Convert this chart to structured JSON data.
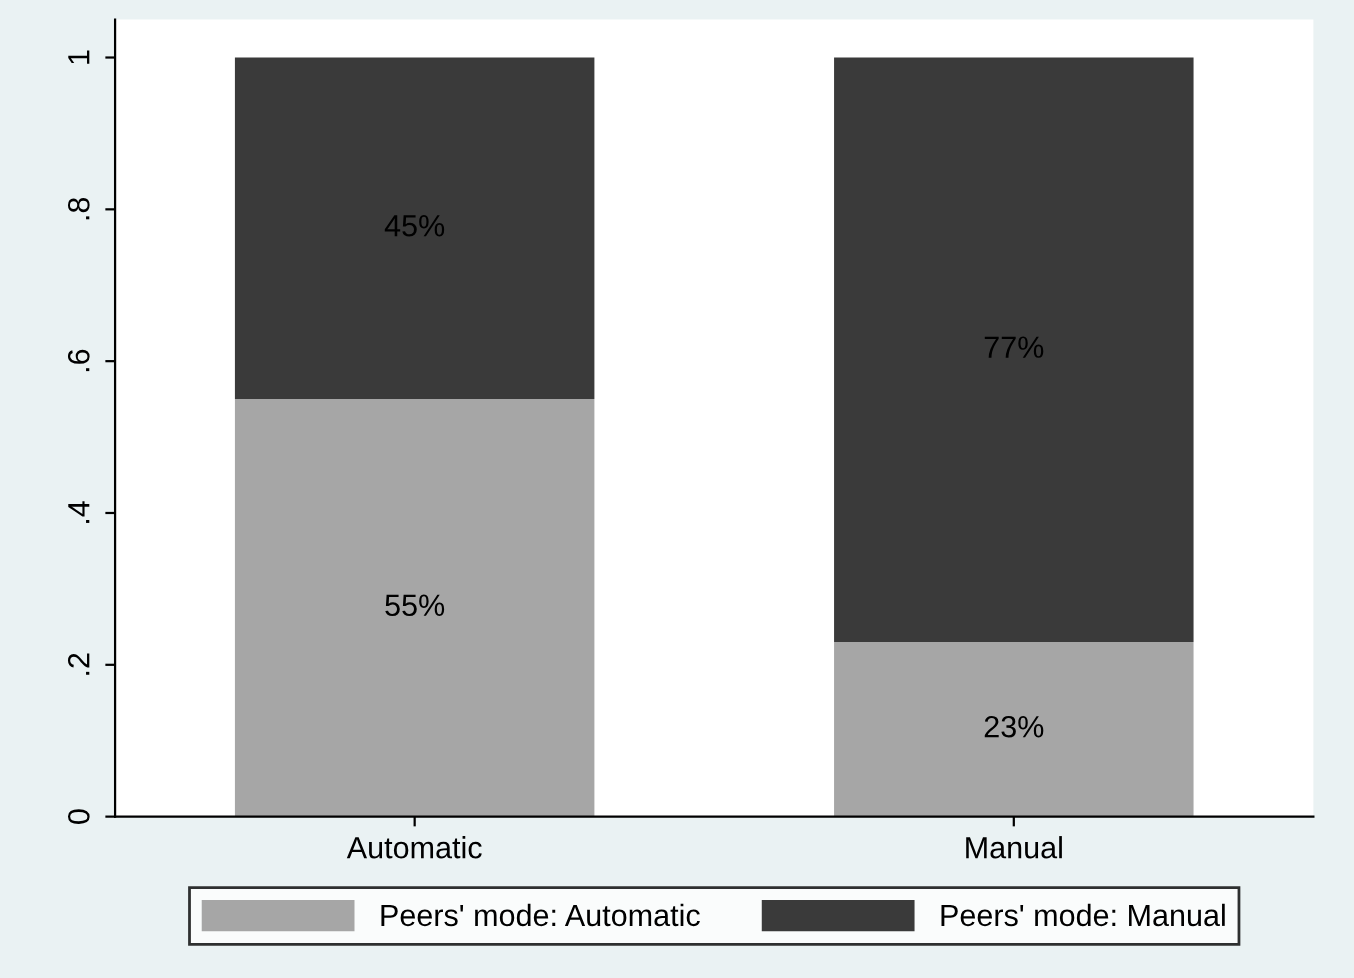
{
  "chart_data": {
    "type": "bar",
    "stacked": true,
    "categories": [
      "Automatic",
      "Manual"
    ],
    "series": [
      {
        "name": "Peers' mode: Automatic",
        "color": "#a6a6a6",
        "values": [
          0.55,
          0.23
        ],
        "value_labels": [
          "55%",
          "23%"
        ]
      },
      {
        "name": "Peers' mode: Manual",
        "color": "#3a3a3a",
        "values": [
          0.45,
          0.77
        ],
        "value_labels": [
          "45%",
          "77%"
        ]
      }
    ],
    "ylim": [
      0,
      1.05
    ],
    "yticks": [
      0,
      {
        "value": 0.2,
        "label": ".2"
      },
      {
        "value": 0.4,
        "label": ".4"
      },
      {
        "value": 0.6,
        "label": ".6"
      },
      {
        "value": 0.8,
        "label": ".8"
      },
      1
    ],
    "grid": false,
    "legend": "bottom"
  }
}
